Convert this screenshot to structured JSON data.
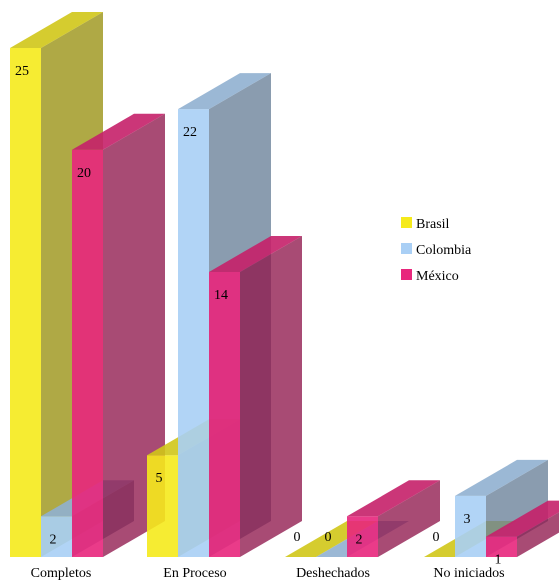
{
  "chart_data": {
    "type": "bar",
    "style": "3d-clustered",
    "categories": [
      "Completos",
      "En Proceso",
      "Deshechados",
      "No iniciados"
    ],
    "series": [
      {
        "name": "Brasil",
        "values": [
          25,
          5,
          0,
          0
        ],
        "color": "#f5ea1c"
      },
      {
        "name": "Colombia",
        "values": [
          2,
          22,
          0,
          3
        ],
        "color": "#a9cff5"
      },
      {
        "name": "México",
        "values": [
          20,
          14,
          2,
          1
        ],
        "color": "#e8267c"
      }
    ],
    "ylim": [
      0,
      25
    ],
    "grid": false,
    "legend_position": "right",
    "data_labels": true
  }
}
